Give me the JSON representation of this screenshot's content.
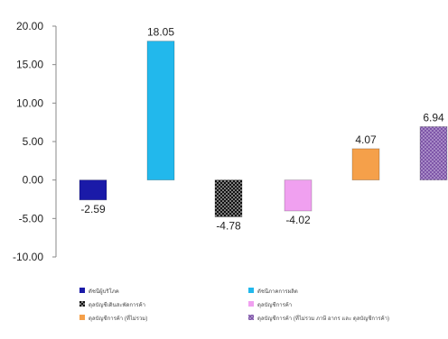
{
  "chart_data": {
    "type": "bar",
    "title": "",
    "xlabel": "",
    "ylabel": "",
    "ylim": [
      -10,
      20
    ],
    "yticks": [
      "20.00",
      "15.00",
      "10.00",
      "5.00",
      "0.00",
      "-5.00",
      "-10.00"
    ],
    "grid": false,
    "legend_position": "bottom",
    "series": [
      {
        "name": "ดัชนีผู้บริโภค",
        "value": -2.59,
        "label": "-2.59",
        "color": "#1a1aa8",
        "pattern": "solid"
      },
      {
        "name": "ดัชนีภาคการผลิต",
        "value": 18.05,
        "label": "18.05",
        "color": "#22b8ec",
        "pattern": "solid"
      },
      {
        "name": "ดุลบัญชีเดินสะพัดการค้า",
        "value": -4.78,
        "label": "-4.78",
        "color": "#111111",
        "pattern": "dots-white"
      },
      {
        "name": "ดุลบัญชีการค้า",
        "value": -4.02,
        "label": "-4.02",
        "color": "#f0a0f0",
        "pattern": "solid"
      },
      {
        "name": "ดุลบัญชีการค้า (ที่ไม่รวม)",
        "value": 4.07,
        "label": "4.07",
        "color": "#f5a04a",
        "pattern": "solid"
      },
      {
        "name": "ดุลบัญชีการค้า (ที่ไม่รวม ภาษี อากร และ ดุลบัญชีการค้า)",
        "value": 6.94,
        "label": "6.94",
        "color": "#7e56a8",
        "pattern": "dots-white"
      }
    ]
  }
}
